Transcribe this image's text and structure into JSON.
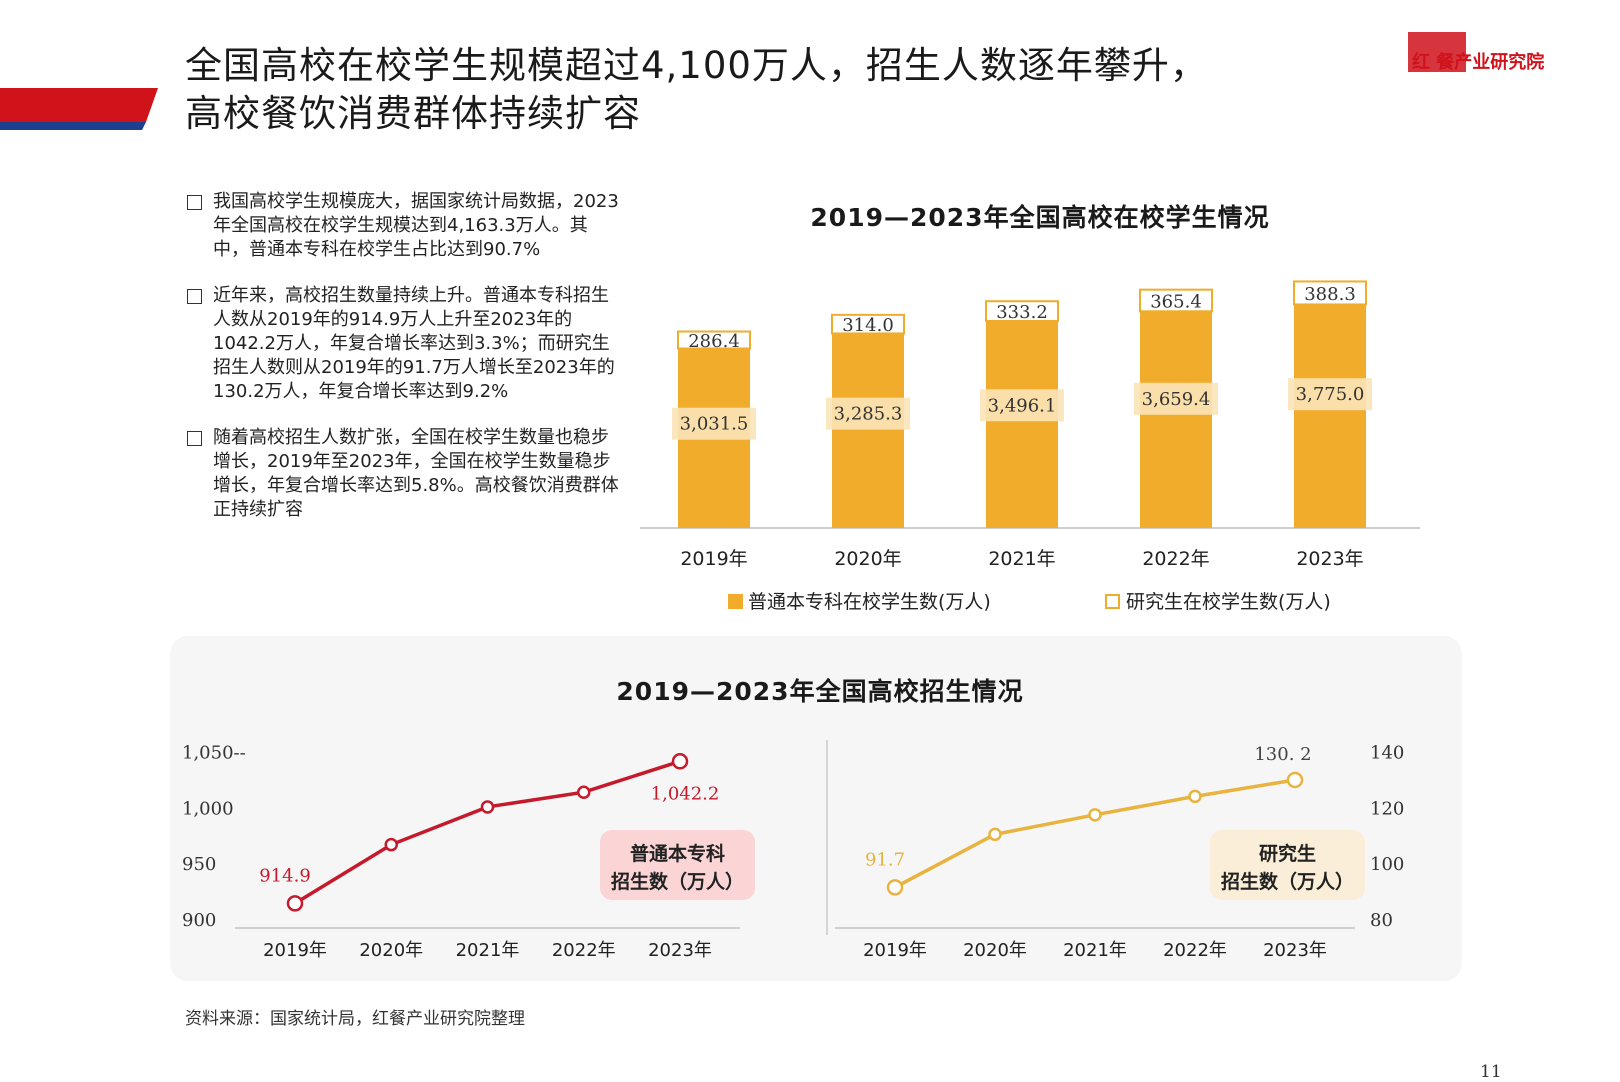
{
  "header": {
    "title_line1": "全国高校在校学生规模超过4,100万人，招生人数逐年攀升，",
    "title_line2": "高校餐饮消费群体持续扩容",
    "logo": "红 餐产业研究院"
  },
  "bullets": [
    "我国高校学生规模庞大，据国家统计局数据，2023年全国高校在校学生规模达到4,163.3万人。其中，普通本专科在校学生占比达到90.7%",
    "近年来，高校招生数量持续上升。普通本专科招生人数从2019年的914.9万人上升至2023年的1042.2万人，年复合增长率达到3.3%；而研究生招生人数则从2019年的91.7万人增长至2023年的130.2万人，年复合增长率达到9.2%",
    "随着高校招生人数扩张，全国在校学生数量也稳步增长，2019年至2023年，全国在校学生数量稳步增长，年复合增长率达到5.8%。高校餐饮消费群体正持续扩容"
  ],
  "colors": {
    "accent_red": "#d0121b",
    "bar_orange": "#f0ac2a",
    "line_red": "#c41a2b",
    "line_gold": "#e8b33e"
  },
  "chart_data": [
    {
      "type": "bar",
      "title": "2019—2023年全国高校在校学生情况",
      "categories": [
        "2019年",
        "2020年",
        "2021年",
        "2022年",
        "2023年"
      ],
      "series": [
        {
          "name": "普通本专科在校学生数(万人)",
          "values": [
            3031.5,
            3285.3,
            3496.1,
            3659.4,
            3775.0
          ],
          "labels": [
            "3,031.5",
            "3,285.3",
            "3,496.1",
            "3,659.4",
            "3,775.0"
          ]
        },
        {
          "name": "研究生在校学生数(万人)",
          "values": [
            286.4,
            314.0,
            333.2,
            365.4,
            388.3
          ],
          "labels": [
            "286.4",
            "314.0",
            "333.2",
            "365.4",
            "388.3"
          ]
        }
      ],
      "stacked": true,
      "legend": "bottom"
    },
    {
      "type": "line",
      "title": "2019—2023年全国高校招生情况",
      "panels": [
        {
          "series_label_line1": "普通本专科",
          "series_label_line2": "招生数（万人）",
          "x": [
            "2019年",
            "2020年",
            "2021年",
            "2022年",
            "2023年"
          ],
          "values": [
            914.9,
            967.5,
            1001.3,
            1014.5,
            1042.2
          ],
          "labels": {
            "0": "914.9",
            "4": "1,042.2"
          },
          "yticks": [
            "1,050--",
            "1,000",
            "950",
            "900"
          ],
          "ytick_values": [
            1050,
            1000,
            950,
            900
          ],
          "ylim": [
            900,
            1050
          ],
          "axis_side": "left"
        },
        {
          "series_label_line1": "研究生",
          "series_label_line2": "招生数（万人）",
          "x": [
            "2019年",
            "2020年",
            "2021年",
            "2022年",
            "2023年"
          ],
          "values": [
            91.7,
            110.7,
            117.7,
            124.3,
            130.2
          ],
          "labels": {
            "0": "91.7",
            "4": "130. 2"
          },
          "yticks": [
            "140",
            "120",
            "100",
            "80"
          ],
          "ytick_values": [
            140,
            120,
            100,
            80
          ],
          "ylim": [
            80,
            140
          ],
          "axis_side": "right"
        }
      ]
    }
  ],
  "footer": {
    "source": "资料来源：国家统计局，红餐产业研究院整理",
    "page": "11"
  }
}
